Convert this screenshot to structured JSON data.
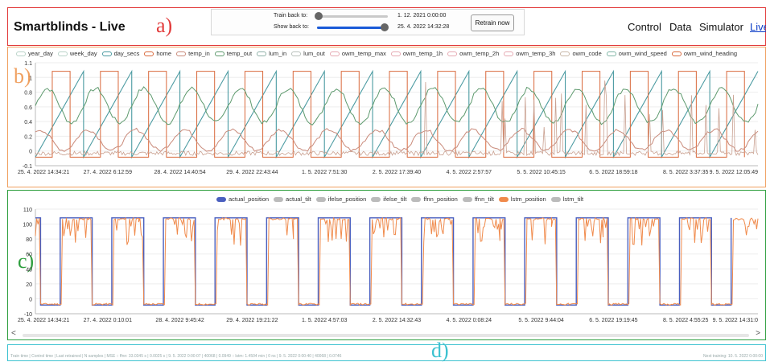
{
  "header": {
    "title": "Smartblinds - Live",
    "region_label": "a)",
    "train_back_label": "Train back to:",
    "train_back_value": "1. 12. 2021 0:00:00",
    "show_back_label": "Show back to:",
    "show_back_value": "25. 4. 2022 14:32:28",
    "retrain_label": "Retrain now",
    "train_slider_level": 0.02,
    "show_slider_level": 0.95,
    "nav": [
      {
        "label": "Control",
        "active": false
      },
      {
        "label": "Data",
        "active": false
      },
      {
        "label": "Simulator",
        "active": false
      },
      {
        "label": "Live",
        "active": true
      }
    ]
  },
  "features": {
    "region_label": "b)",
    "legend": [
      {
        "label": "year_day",
        "color": "#b9d3c8"
      },
      {
        "label": "week_day",
        "color": "#b9d3c8"
      },
      {
        "label": "day_secs",
        "color": "#4a9aa1"
      },
      {
        "label": "home",
        "color": "#d9693c"
      },
      {
        "label": "temp_in",
        "color": "#c98a7a"
      },
      {
        "label": "temp_out",
        "color": "#5e9a6e"
      },
      {
        "label": "lum_in",
        "color": "#8fb1a8"
      },
      {
        "label": "lum_out",
        "color": "#b8c0bb"
      },
      {
        "label": "owm_temp_max",
        "color": "#e6a9b2"
      },
      {
        "label": "owm_temp_1h",
        "color": "#e6a9b2"
      },
      {
        "label": "owm_temp_2h",
        "color": "#e6a9b2"
      },
      {
        "label": "owm_temp_3h",
        "color": "#e6a9b2"
      },
      {
        "label": "owm_code",
        "color": "#c9b8a8"
      },
      {
        "label": "owm_wind_speed",
        "color": "#7fb5a5"
      },
      {
        "label": "owm_wind_heading",
        "color": "#d9693c"
      }
    ],
    "y_ticks": [
      "1.1",
      "1",
      "0.8",
      "0.6",
      "0.4",
      "0.2",
      "0",
      "-0.1"
    ],
    "x_ticks": [
      "25. 4. 2022 14:34:21",
      "27. 4. 2022 6:12:59",
      "28. 4. 2022 14:40:54",
      "29. 4. 2022 22:43:44",
      "1. 5. 2022 7:51:30",
      "2. 5. 2022 17:39:40",
      "4. 5. 2022 2:57:57",
      "5. 5. 2022 10:45:15",
      "6. 5. 2022 18:59:18",
      "8. 5. 2022 3:37:35",
      "9. 5. 2022 12:05:49"
    ]
  },
  "predictions": {
    "region_label": "c)",
    "legend": [
      {
        "label": "actual_position",
        "color": "#4a5fbf"
      },
      {
        "label": "actual_tilt",
        "color": "#bbbbbb"
      },
      {
        "label": "ifelse_position",
        "color": "#bbbbbb"
      },
      {
        "label": "ifelse_tilt",
        "color": "#bbbbbb"
      },
      {
        "label": "ffnn_position",
        "color": "#bbbbbb"
      },
      {
        "label": "ffnn_tilt",
        "color": "#bbbbbb"
      },
      {
        "label": "lstm_position",
        "color": "#f08a4b"
      },
      {
        "label": "lstm_tilt",
        "color": "#bbbbbb"
      }
    ],
    "y_ticks": [
      "110",
      "100",
      "80",
      "60",
      "40",
      "20",
      "0",
      "-10"
    ],
    "x_ticks": [
      "25. 4. 2022 14:34:21",
      "27. 4. 2022 0:10:01",
      "28. 4. 2022 9:45:42",
      "29. 4. 2022 19:21:22",
      "1. 5. 2022 4:57:03",
      "2. 5. 2022 14:32:43",
      "4. 5. 2022 0:08:24",
      "5. 5. 2022 9:44:04",
      "6. 5. 2022 19:19:45",
      "8. 5. 2022 4:55:25",
      "9. 5. 2022 14:31:0"
    ],
    "scroll_left": "<",
    "scroll_right": ">"
  },
  "footer": {
    "region_label": "d)",
    "status_text": "Train time | Control time | Last retrained | N samples | MSE :: ffnn: 33.0345 s | 0.0025 s | 9. 5. 2022 0:00:07 | 40068 | 0.0949 :: lstm: 1.4504 min | 0 ns | 9. 5. 2022 0:00:40 | 40068 | 0.0746",
    "next_training": "Next training: 10. 5. 2022 0:00:00"
  }
}
